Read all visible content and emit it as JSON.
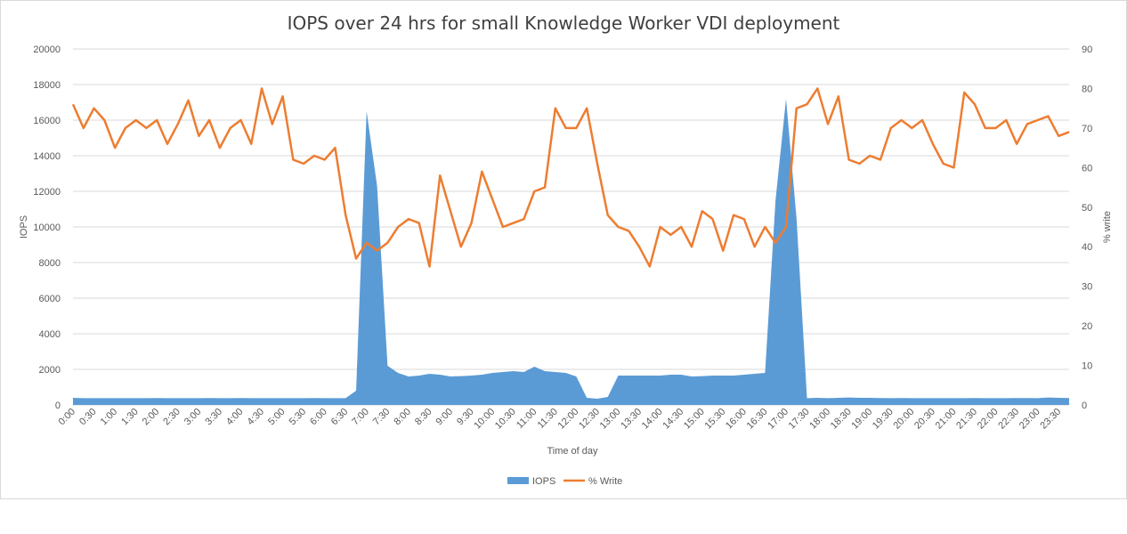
{
  "chart_data": {
    "type": "area+line",
    "title": "IOPS over 24 hrs for small Knowledge Worker VDI deployment",
    "xlabel": "Time of day",
    "ylabel_left": "IOPS",
    "ylabel_right": "% write",
    "ylim_left": [
      0,
      20000
    ],
    "ylim_right": [
      0,
      90
    ],
    "yticks_left": [
      "0",
      "2000",
      "4000",
      "6000",
      "8000",
      "10000",
      "12000",
      "14000",
      "16000",
      "18000",
      "20000"
    ],
    "yticks_right": [
      "0",
      "10",
      "20",
      "30",
      "40",
      "50",
      "60",
      "70",
      "80",
      "90"
    ],
    "grid": true,
    "legend_position": "bottom",
    "colors": {
      "iops": "#5b9bd5",
      "write": "#ed7d31",
      "grid": "#d9d9d9"
    },
    "x": [
      "0:00",
      "0:15",
      "0:30",
      "0:45",
      "1:00",
      "1:15",
      "1:30",
      "1:45",
      "2:00",
      "2:15",
      "2:30",
      "2:45",
      "3:00",
      "3:15",
      "3:30",
      "3:45",
      "4:00",
      "4:15",
      "4:30",
      "4:45",
      "5:00",
      "5:15",
      "5:30",
      "5:45",
      "6:00",
      "6:15",
      "6:30",
      "6:45",
      "7:00",
      "7:15",
      "7:30",
      "7:45",
      "8:00",
      "8:15",
      "8:30",
      "8:45",
      "9:00",
      "9:15",
      "9:30",
      "9:45",
      "10:00",
      "10:15",
      "10:30",
      "10:45",
      "11:00",
      "11:15",
      "11:30",
      "11:45",
      "12:00",
      "12:15",
      "12:30",
      "12:45",
      "13:00",
      "13:15",
      "13:30",
      "13:45",
      "14:00",
      "14:15",
      "14:30",
      "14:45",
      "15:00",
      "15:15",
      "15:30",
      "15:45",
      "16:00",
      "16:15",
      "16:30",
      "16:45",
      "17:00",
      "17:15",
      "17:30",
      "17:45",
      "18:00",
      "18:15",
      "18:30",
      "18:45",
      "19:00",
      "19:15",
      "19:30",
      "19:45",
      "20:00",
      "20:15",
      "20:30",
      "20:45",
      "21:00",
      "21:15",
      "21:30",
      "21:45",
      "22:00",
      "22:15",
      "22:30",
      "22:45",
      "23:00",
      "23:15",
      "23:30",
      "23:45"
    ],
    "x_tick_labels": [
      "0:00",
      "0:30",
      "1:00",
      "1:30",
      "2:00",
      "2:30",
      "3:00",
      "3:30",
      "4:00",
      "4:30",
      "5:00",
      "5:30",
      "6:00",
      "6:30",
      "7:00",
      "7:30",
      "8:00",
      "8:30",
      "9:00",
      "9:30",
      "10:00",
      "10:30",
      "11:00",
      "11:30",
      "12:00",
      "12:30",
      "13:00",
      "13:30",
      "14:00",
      "14:30",
      "15:00",
      "15:30",
      "16:00",
      "16:30",
      "17:00",
      "17:30",
      "18:00",
      "18:30",
      "19:00",
      "19:30",
      "20:00",
      "20:30",
      "21:00",
      "21:30",
      "22:00",
      "22:30",
      "23:00",
      "23:30"
    ],
    "series": [
      {
        "name": "IOPS",
        "kind": "area",
        "axis": "left",
        "values": [
          400,
          380,
          380,
          380,
          380,
          380,
          380,
          380,
          390,
          380,
          380,
          380,
          380,
          390,
          380,
          380,
          390,
          380,
          380,
          380,
          380,
          380,
          380,
          390,
          380,
          380,
          380,
          800,
          16500,
          12300,
          2200,
          1800,
          1600,
          1650,
          1750,
          1700,
          1600,
          1620,
          1650,
          1700,
          1800,
          1850,
          1900,
          1850,
          2150,
          1900,
          1850,
          1800,
          1600,
          400,
          350,
          450,
          1650,
          1650,
          1650,
          1650,
          1650,
          1700,
          1700,
          1600,
          1620,
          1650,
          1650,
          1650,
          1700,
          1750,
          1800,
          11500,
          17200,
          10500,
          380,
          400,
          380,
          400,
          420,
          400,
          400,
          390,
          380,
          390,
          380,
          380,
          380,
          380,
          380,
          380,
          390,
          380,
          380,
          380,
          390,
          390,
          380,
          420,
          400,
          390
        ]
      },
      {
        "name": "% Write",
        "kind": "line",
        "axis": "right",
        "values": [
          76,
          70,
          75,
          72,
          65,
          70,
          72,
          70,
          72,
          66,
          71,
          77,
          68,
          72,
          65,
          70,
          72,
          66,
          80,
          71,
          78,
          62,
          61,
          63,
          62,
          65,
          48,
          37,
          41,
          39,
          41,
          45,
          47,
          46,
          35,
          58,
          49,
          40,
          46,
          59,
          52,
          45,
          46,
          47,
          54,
          55,
          75,
          70,
          70,
          75,
          61,
          48,
          45,
          44,
          40,
          35,
          45,
          43,
          45,
          40,
          49,
          47,
          39,
          48,
          47,
          40,
          45,
          41,
          45,
          75,
          76,
          80,
          71,
          78,
          62,
          61,
          63,
          62,
          70,
          72,
          70,
          72,
          66,
          61,
          60,
          79,
          76,
          70,
          70,
          72,
          66,
          71,
          72,
          73,
          68,
          69
        ]
      }
    ]
  }
}
